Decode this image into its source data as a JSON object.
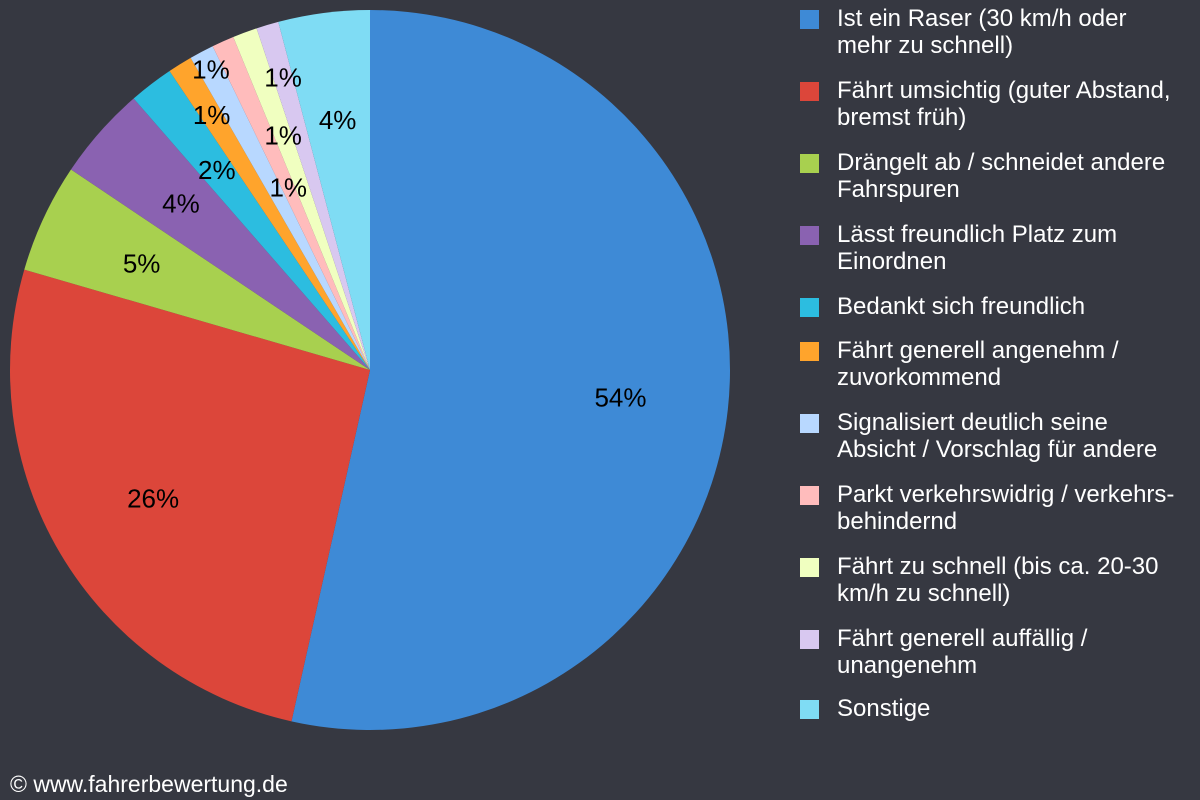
{
  "chart_data": {
    "type": "pie",
    "title": "",
    "legend_position": "right",
    "slices": [
      {
        "label": "Ist ein Raser (30 km/h oder mehr zu schnell)",
        "value": 53.5,
        "display": "54%",
        "color": "#3e8ad6"
      },
      {
        "label": "Fährt umsichtig (guter Abstand, bremst früh)",
        "value": 26.0,
        "display": "26%",
        "color": "#dc463a"
      },
      {
        "label": "Drängelt ab / schneidet andere Fahrspuren",
        "value": 4.9,
        "display": "5%",
        "color": "#a8d04f"
      },
      {
        "label": "Lässt freundlich Platz zum Einordnen",
        "value": 4.2,
        "display": "4%",
        "color": "#8a62b1"
      },
      {
        "label": "Bedankt sich freundlich",
        "value": 2.0,
        "display": "2%",
        "color": "#2cbde0"
      },
      {
        "label": "Fährt generell angenehm / zuvorkommend",
        "value": 1.1,
        "display": "1%",
        "color": "#ffa42c"
      },
      {
        "label": "Signalisiert deutlich seine Absicht / Vorschlag für andere",
        "value": 1.1,
        "display": "1%",
        "color": "#b8d8ff"
      },
      {
        "label": "Parkt verkehrswidrig / verkehrs-behindernd",
        "value": 1.0,
        "display": "1%",
        "color": "#ffbcbc"
      },
      {
        "label": "Fährt zu schnell (bis ca. 20-30 km/h zu schnell)",
        "value": 1.1,
        "display": "1%",
        "color": "#f0ffc0"
      },
      {
        "label": "Fährt generell auffällig / unangenehm",
        "value": 1.0,
        "display": "1%",
        "color": "#d8c8f0"
      },
      {
        "label": "Sonstige",
        "value": 4.1,
        "display": "4%",
        "color": "#7fdcf4"
      }
    ]
  },
  "credit": "© www.fahrerbewertung.de"
}
